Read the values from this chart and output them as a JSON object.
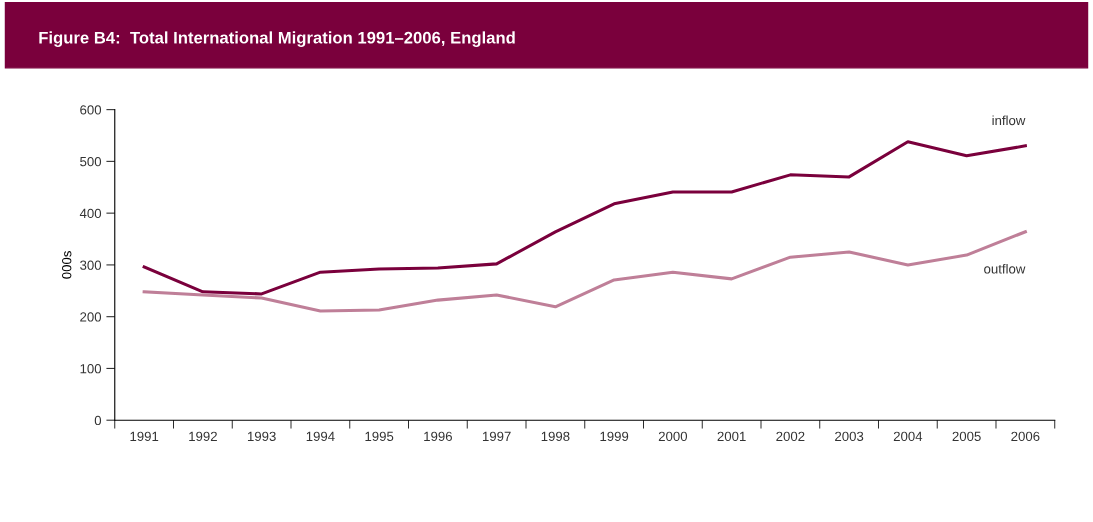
{
  "chart_data": {
    "type": "line",
    "title": "Figure B4:  Total International Migration 1991–2006, England",
    "ylabel": "000s",
    "categories": [
      "1991",
      "1992",
      "1993",
      "1994",
      "1995",
      "1996",
      "1997",
      "1998",
      "1999",
      "2000",
      "2001",
      "2002",
      "2003",
      "2004",
      "2005",
      "2006"
    ],
    "series": [
      {
        "name": "inflow",
        "color": "#7a003c",
        "values": [
          296,
          248,
          244,
          286,
          292,
          294,
          302,
          364,
          418,
          441,
          441,
          474,
          470,
          538,
          511,
          530
        ]
      },
      {
        "name": "outflow",
        "color": "#bf7f98",
        "values": [
          248,
          242,
          236,
          211,
          213,
          232,
          242,
          219,
          271,
          286,
          273,
          315,
          325,
          300,
          319,
          364
        ]
      }
    ],
    "ylim": [
      0,
      600
    ],
    "yticks": [
      0,
      100,
      200,
      300,
      400,
      500,
      600
    ],
    "grid": false,
    "legend": false,
    "marker": "none",
    "line_style": "solid"
  }
}
